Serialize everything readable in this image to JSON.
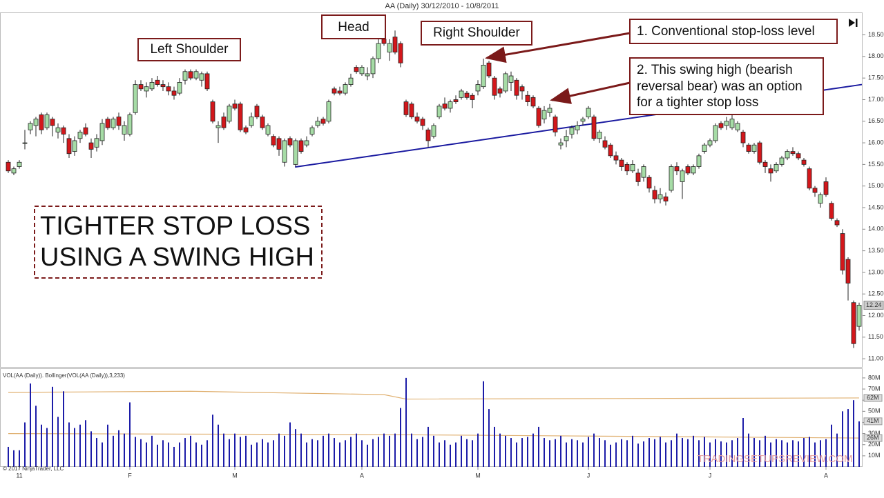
{
  "chart_data": {
    "type": "candlestick",
    "title": "AA (Daily)  30/12/2010 - 10/8/2011",
    "copyright": "© 2017 NinjaTrader, LLC",
    "watermark": "TRADINGSETUPSREVIEW.COM",
    "headline": [
      "TIGHTER STOP LOSS",
      "USING A SWING HIGH"
    ],
    "annotations": {
      "left_shoulder": "Left Shoulder",
      "head": "Head",
      "right_shoulder": "Right Shoulder",
      "note1": "1. Conventional stop-loss level",
      "note2": [
        "2. This swing high (bearish",
        "reversal bear) was an option",
        "for a tighter stop loss"
      ]
    },
    "up_color": "#a6dca6",
    "down_color": "#d3171b",
    "ylim": [
      10.81,
      19.02
    ],
    "yticks": [
      {
        "value": 18.5,
        "label": "18.50"
      },
      {
        "value": 18,
        "label": "18.00"
      },
      {
        "value": 17.5,
        "label": "17.50"
      },
      {
        "value": 17,
        "label": "17.00"
      },
      {
        "value": 16.5,
        "label": "16.50"
      },
      {
        "value": 16,
        "label": "16.00"
      },
      {
        "value": 15.5,
        "label": "15.50"
      },
      {
        "value": 15,
        "label": "15.00"
      },
      {
        "value": 14.5,
        "label": "14.50"
      },
      {
        "value": 14,
        "label": "14.00"
      },
      {
        "value": 13.5,
        "label": "13.50"
      },
      {
        "value": 13,
        "label": "13.00"
      },
      {
        "value": 12.5,
        "label": "12.50"
      },
      {
        "value": 12,
        "label": "12.00"
      },
      {
        "value": 11.5,
        "label": "11.50"
      },
      {
        "value": 11,
        "label": "11.00"
      }
    ],
    "last_price": 12.24,
    "xticks": [
      {
        "value": 2,
        "label": "11"
      },
      {
        "value": 22,
        "label": "F"
      },
      {
        "value": 41,
        "label": "M"
      },
      {
        "value": 64,
        "label": "A"
      },
      {
        "value": 85,
        "label": "M"
      },
      {
        "value": 105,
        "label": "J"
      },
      {
        "value": 127,
        "label": "J"
      },
      {
        "value": 148,
        "label": "A"
      }
    ],
    "neckline": {
      "color": "#1a1aa0",
      "x": [
        51.9,
        154.5
      ],
      "y": [
        15.44,
        17.35
      ]
    },
    "candles": [
      [
        15.55,
        15.6,
        15.3,
        15.35
      ],
      [
        15.3,
        15.45,
        15.25,
        15.4
      ],
      [
        15.45,
        15.6,
        15.4,
        15.55
      ],
      [
        16.0,
        16.3,
        15.85,
        16.0
      ],
      [
        16.3,
        16.5,
        16.2,
        16.45
      ],
      [
        16.4,
        16.6,
        16.15,
        16.55
      ],
      [
        16.65,
        16.7,
        16.2,
        16.3
      ],
      [
        16.35,
        16.7,
        16.3,
        16.65
      ],
      [
        16.55,
        16.6,
        16.15,
        16.4
      ],
      [
        16.25,
        16.45,
        16.1,
        16.35
      ],
      [
        16.35,
        16.4,
        16.0,
        16.2
      ],
      [
        16.1,
        16.2,
        15.65,
        15.75
      ],
      [
        15.8,
        16.15,
        15.7,
        16.05
      ],
      [
        16.1,
        16.3,
        16.0,
        16.25
      ],
      [
        16.35,
        16.45,
        16.15,
        16.2
      ],
      [
        16.0,
        16.1,
        15.65,
        15.85
      ],
      [
        15.9,
        16.2,
        15.8,
        16.1
      ],
      [
        16.05,
        16.55,
        15.95,
        16.45
      ],
      [
        16.55,
        16.6,
        16.3,
        16.35
      ],
      [
        16.35,
        16.6,
        16.3,
        16.55
      ],
      [
        16.6,
        16.7,
        16.3,
        16.4
      ],
      [
        16.2,
        16.5,
        16.05,
        16.4
      ],
      [
        16.2,
        16.7,
        16.15,
        16.65
      ],
      [
        16.7,
        17.45,
        16.65,
        17.35
      ],
      [
        17.35,
        17.45,
        17.2,
        17.25
      ],
      [
        17.2,
        17.4,
        17.05,
        17.3
      ],
      [
        17.25,
        17.5,
        17.2,
        17.4
      ],
      [
        17.45,
        17.55,
        17.3,
        17.35
      ],
      [
        17.35,
        17.45,
        17.2,
        17.3
      ],
      [
        17.3,
        17.4,
        17.1,
        17.2
      ],
      [
        17.2,
        17.3,
        17.0,
        17.1
      ],
      [
        17.15,
        17.5,
        17.1,
        17.4
      ],
      [
        17.45,
        17.7,
        17.35,
        17.65
      ],
      [
        17.65,
        17.7,
        17.45,
        17.5
      ],
      [
        17.5,
        17.7,
        17.45,
        17.65
      ],
      [
        17.45,
        17.65,
        17.3,
        17.6
      ],
      [
        17.6,
        17.65,
        17.2,
        17.25
      ],
      [
        16.95,
        17.0,
        16.45,
        16.5
      ],
      [
        16.35,
        16.5,
        16.0,
        16.4
      ],
      [
        16.6,
        16.7,
        16.3,
        16.35
      ],
      [
        16.5,
        16.9,
        16.45,
        16.85
      ],
      [
        16.9,
        17.0,
        16.75,
        16.8
      ],
      [
        16.9,
        16.95,
        16.25,
        16.3
      ],
      [
        16.35,
        16.4,
        16.2,
        16.25
      ],
      [
        16.4,
        16.7,
        16.35,
        16.6
      ],
      [
        16.85,
        16.9,
        16.55,
        16.6
      ],
      [
        16.6,
        16.65,
        16.3,
        16.35
      ],
      [
        16.2,
        16.45,
        16.15,
        16.4
      ],
      [
        16.15,
        16.2,
        15.9,
        15.95
      ],
      [
        16.1,
        16.15,
        15.7,
        15.85
      ],
      [
        15.55,
        16.1,
        15.45,
        16.05
      ],
      [
        16.1,
        16.15,
        15.9,
        15.95
      ],
      [
        15.5,
        16.1,
        15.45,
        16.05
      ],
      [
        16.05,
        16.1,
        15.75,
        15.8
      ],
      [
        15.95,
        16.15,
        15.9,
        16.05
      ],
      [
        16.2,
        16.4,
        16.15,
        16.35
      ],
      [
        16.4,
        16.6,
        16.35,
        16.5
      ],
      [
        16.55,
        16.6,
        16.4,
        16.45
      ],
      [
        16.5,
        17.0,
        16.45,
        16.95
      ],
      [
        17.25,
        17.3,
        17.1,
        17.15
      ],
      [
        17.2,
        17.3,
        17.1,
        17.15
      ],
      [
        17.15,
        17.4,
        17.1,
        17.35
      ],
      [
        17.35,
        17.6,
        17.3,
        17.5
      ],
      [
        17.75,
        17.8,
        17.6,
        17.65
      ],
      [
        17.6,
        17.8,
        17.55,
        17.75
      ],
      [
        17.55,
        17.75,
        17.45,
        17.6
      ],
      [
        17.6,
        18.0,
        17.5,
        17.95
      ],
      [
        17.95,
        18.4,
        17.85,
        18.3
      ],
      [
        18.4,
        18.5,
        18.25,
        18.3
      ],
      [
        18.1,
        18.4,
        17.9,
        18.3
      ],
      [
        18.45,
        18.6,
        18.05,
        18.1
      ],
      [
        18.3,
        18.35,
        17.75,
        17.85
      ],
      [
        16.95,
        17.0,
        16.6,
        16.65
      ],
      [
        16.9,
        16.95,
        16.55,
        16.6
      ],
      [
        16.6,
        16.7,
        16.45,
        16.5
      ],
      [
        16.55,
        16.6,
        16.3,
        16.4
      ],
      [
        16.3,
        16.35,
        15.9,
        16.05
      ],
      [
        16.15,
        16.45,
        16.1,
        16.4
      ],
      [
        16.6,
        16.9,
        16.55,
        16.85
      ],
      [
        16.9,
        17.05,
        16.75,
        16.8
      ],
      [
        16.8,
        17.0,
        16.7,
        16.95
      ],
      [
        17.0,
        17.1,
        16.9,
        16.95
      ],
      [
        17.05,
        17.25,
        17.0,
        17.2
      ],
      [
        17.15,
        17.2,
        17.0,
        17.05
      ],
      [
        17.1,
        17.15,
        16.8,
        17.0
      ],
      [
        17.2,
        17.45,
        17.1,
        17.35
      ],
      [
        17.3,
        17.95,
        17.25,
        17.8
      ],
      [
        17.85,
        17.9,
        17.5,
        17.55
      ],
      [
        17.5,
        17.55,
        17.0,
        17.1
      ],
      [
        17.25,
        17.3,
        17.05,
        17.15
      ],
      [
        17.2,
        17.65,
        17.15,
        17.6
      ],
      [
        17.4,
        17.65,
        17.2,
        17.55
      ],
      [
        17.45,
        17.5,
        17.0,
        17.1
      ],
      [
        17.3,
        17.35,
        17.0,
        17.2
      ],
      [
        17.1,
        17.2,
        16.85,
        16.95
      ],
      [
        17.05,
        17.1,
        16.8,
        16.85
      ],
      [
        16.8,
        16.85,
        16.35,
        16.4
      ],
      [
        16.55,
        16.85,
        16.45,
        16.75
      ],
      [
        16.7,
        16.9,
        16.6,
        16.8
      ],
      [
        16.6,
        16.65,
        16.15,
        16.25
      ],
      [
        15.95,
        16.1,
        15.85,
        16.0
      ],
      [
        16.05,
        16.3,
        15.9,
        16.15
      ],
      [
        16.2,
        16.4,
        16.1,
        16.35
      ],
      [
        16.3,
        16.5,
        16.2,
        16.4
      ],
      [
        16.5,
        16.6,
        16.4,
        16.55
      ],
      [
        16.6,
        16.85,
        16.55,
        16.8
      ],
      [
        16.6,
        16.65,
        16.05,
        16.1
      ],
      [
        16.1,
        16.3,
        16.0,
        16.25
      ],
      [
        16.05,
        16.15,
        15.85,
        15.9
      ],
      [
        15.95,
        16.0,
        15.65,
        15.7
      ],
      [
        15.7,
        15.8,
        15.5,
        15.6
      ],
      [
        15.6,
        15.65,
        15.35,
        15.45
      ],
      [
        15.5,
        15.55,
        15.25,
        15.35
      ],
      [
        15.35,
        15.6,
        15.3,
        15.5
      ],
      [
        15.3,
        15.4,
        15.0,
        15.1
      ],
      [
        15.2,
        15.5,
        15.1,
        15.45
      ],
      [
        15.2,
        15.25,
        14.85,
        14.95
      ],
      [
        14.9,
        15.0,
        14.6,
        14.7
      ],
      [
        14.7,
        14.95,
        14.6,
        14.8
      ],
      [
        14.75,
        14.85,
        14.55,
        14.65
      ],
      [
        14.9,
        15.5,
        14.85,
        15.45
      ],
      [
        15.45,
        15.55,
        15.25,
        15.35
      ],
      [
        15.1,
        15.4,
        14.7,
        15.35
      ],
      [
        15.45,
        15.5,
        15.25,
        15.3
      ],
      [
        15.3,
        15.5,
        15.25,
        15.45
      ],
      [
        15.45,
        15.75,
        15.4,
        15.7
      ],
      [
        15.8,
        16.0,
        15.75,
        15.95
      ],
      [
        15.95,
        16.1,
        15.9,
        16.05
      ],
      [
        16.05,
        16.45,
        16.0,
        16.4
      ],
      [
        16.45,
        16.5,
        16.3,
        16.35
      ],
      [
        16.4,
        16.6,
        16.3,
        16.5
      ],
      [
        16.35,
        16.65,
        16.3,
        16.55
      ],
      [
        16.3,
        16.5,
        16.25,
        16.45
      ],
      [
        16.25,
        16.3,
        15.9,
        16.0
      ],
      [
        15.95,
        16.0,
        15.75,
        15.8
      ],
      [
        15.8,
        16.0,
        15.75,
        15.95
      ],
      [
        16.0,
        16.05,
        15.5,
        15.55
      ],
      [
        15.55,
        15.6,
        15.3,
        15.45
      ],
      [
        15.4,
        15.5,
        15.1,
        15.3
      ],
      [
        15.35,
        15.55,
        15.3,
        15.5
      ],
      [
        15.5,
        15.7,
        15.45,
        15.65
      ],
      [
        15.65,
        15.85,
        15.6,
        15.8
      ],
      [
        15.8,
        15.9,
        15.7,
        15.75
      ],
      [
        15.75,
        15.8,
        15.6,
        15.65
      ],
      [
        15.6,
        15.65,
        15.45,
        15.5
      ],
      [
        15.4,
        15.45,
        14.9,
        14.95
      ],
      [
        14.95,
        15.0,
        14.75,
        14.85
      ],
      [
        14.6,
        14.85,
        14.5,
        14.8
      ],
      [
        15.1,
        15.2,
        14.75,
        14.8
      ],
      [
        14.6,
        14.65,
        14.2,
        14.25
      ],
      [
        14.2,
        14.25,
        14.05,
        14.1
      ],
      [
        13.9,
        14.0,
        12.95,
        13.05
      ],
      [
        13.3,
        13.35,
        12.35,
        12.75
      ],
      [
        12.3,
        12.35,
        11.25,
        11.35
      ],
      [
        11.75,
        12.3,
        11.65,
        12.24
      ]
    ],
    "volume": {
      "title": "VOL(AA (Daily)). Bollinger(VOL(AA (Daily)),3,233)",
      "color": "#1c1ca8",
      "ylim": [
        0,
        88
      ],
      "yticks": [
        {
          "value": 10,
          "label": "10M"
        },
        {
          "value": 20,
          "label": "20M"
        },
        {
          "value": 30,
          "label": "30M"
        },
        {
          "value": 40,
          "label": "40M"
        },
        {
          "value": 50,
          "label": "50M"
        },
        {
          "value": 60,
          "label": "60M"
        },
        {
          "value": 70,
          "label": "70M"
        },
        {
          "value": 80,
          "label": "80M"
        }
      ],
      "values": [
        18,
        15,
        15,
        40,
        75,
        55,
        38,
        35,
        72,
        45,
        68,
        40,
        35,
        38,
        42,
        32,
        26,
        22,
        38,
        28,
        33,
        30,
        58,
        27,
        25,
        22,
        28,
        20,
        24,
        22,
        18,
        22,
        26,
        28,
        22,
        20,
        24,
        47,
        38,
        30,
        25,
        30,
        27,
        28,
        20,
        22,
        25,
        22,
        24,
        30,
        28,
        40,
        34,
        30,
        22,
        25,
        24,
        28,
        30,
        26,
        22,
        24,
        27,
        30,
        24,
        20,
        25,
        27,
        30,
        28,
        30,
        53,
        80,
        30,
        25,
        27,
        36,
        28,
        22,
        24,
        20,
        22,
        28,
        25,
        24,
        30,
        77,
        52,
        36,
        30,
        28,
        26,
        22,
        26,
        27,
        30,
        36,
        26,
        24,
        25,
        28,
        22,
        25,
        24,
        22,
        27,
        30,
        26,
        24,
        20,
        22,
        25,
        24,
        28,
        21,
        23,
        26,
        25,
        27,
        22,
        24,
        30,
        26,
        25,
        28,
        24,
        27,
        22,
        25,
        23,
        22,
        24,
        26,
        44,
        30,
        26,
        24,
        28,
        22,
        25,
        24,
        22,
        24,
        23,
        26,
        27,
        22,
        24,
        25,
        38,
        30,
        50,
        52,
        60,
        41
      ],
      "last_label": "41M",
      "bands": [
        {
          "color": "#e0b070",
          "x": [
            0,
            33,
            68,
            72,
            154
          ],
          "values": [
            67,
            68,
            65,
            61,
            62
          ],
          "last_label": "62M"
        },
        {
          "color": "#e0b070",
          "x": [
            0,
            70,
            154
          ],
          "values": [
            30,
            29,
            26
          ],
          "last_label": "26M"
        }
      ]
    }
  }
}
